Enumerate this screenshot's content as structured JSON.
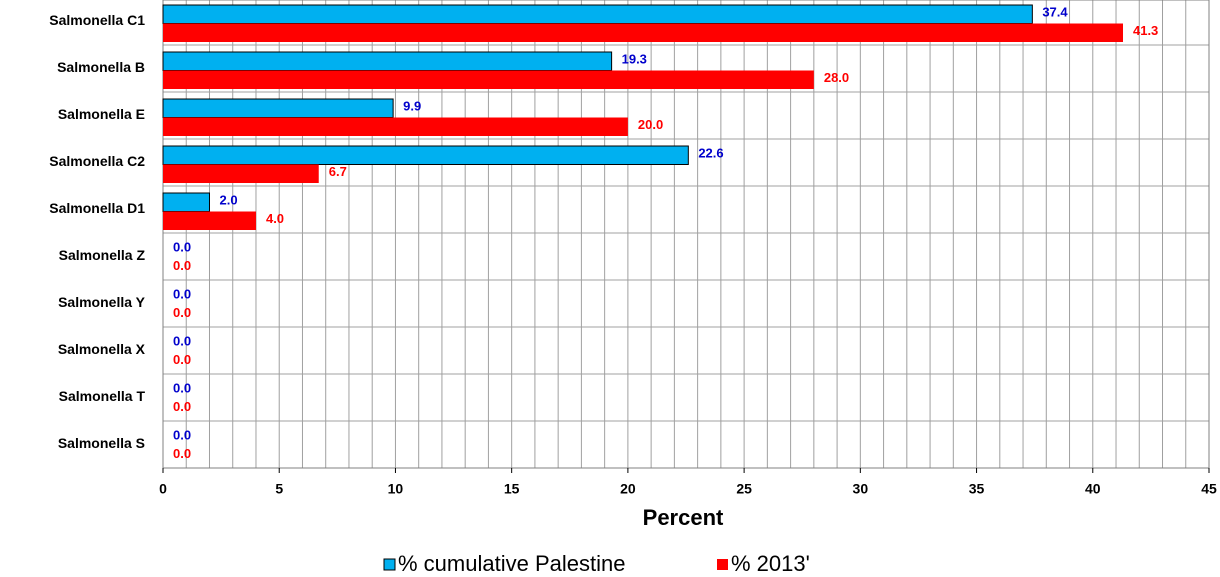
{
  "chart_data": {
    "type": "hbar",
    "categories": [
      "Salmonella C1",
      "Salmonella B",
      "Salmonella E",
      "Salmonella C2",
      "Salmonella D1",
      "Salmonella Z",
      "Salmonella Y",
      "Salmonella X",
      "Salmonella T",
      "Salmonella S"
    ],
    "series": [
      {
        "name": "% cumulative Palestine",
        "color": "#00b0f0",
        "label_color": "#0000cc",
        "values": [
          37.4,
          19.3,
          9.9,
          22.6,
          2.0,
          0,
          0,
          0,
          0,
          0
        ],
        "value_labels": [
          "37.4",
          "19.3",
          "9.9",
          "22.6",
          "2.0",
          "0.0",
          "0.0",
          "0.0",
          "0.0",
          "0.0"
        ]
      },
      {
        "name": "% 2013'",
        "color": "#ff0000",
        "label_color": "#ff0000",
        "values": [
          41.3,
          28.0,
          20.0,
          6.7,
          4.0,
          0,
          0,
          0,
          0,
          0
        ],
        "value_labels": [
          "41.3",
          "28.0",
          "20.0",
          "6.7",
          "4.0",
          "0.0",
          "0.0",
          "0.0",
          "0.0",
          "0.0"
        ]
      }
    ],
    "x_label": "Percent",
    "xlim": [
      0,
      45
    ],
    "xticks": [
      0,
      5,
      10,
      15,
      20,
      25,
      30,
      35,
      40,
      45
    ],
    "xminorticks": [
      0,
      1,
      2,
      3,
      4,
      5,
      6,
      7,
      8,
      9,
      10,
      11,
      12,
      13,
      14,
      15,
      16,
      17,
      18,
      19,
      20,
      21,
      22,
      23,
      24,
      25,
      26,
      27,
      28,
      29,
      30,
      31,
      32,
      33,
      34,
      35,
      36,
      37,
      38,
      39,
      40,
      41,
      42,
      43,
      44,
      45
    ],
    "grid": true,
    "legend": "bottom"
  }
}
